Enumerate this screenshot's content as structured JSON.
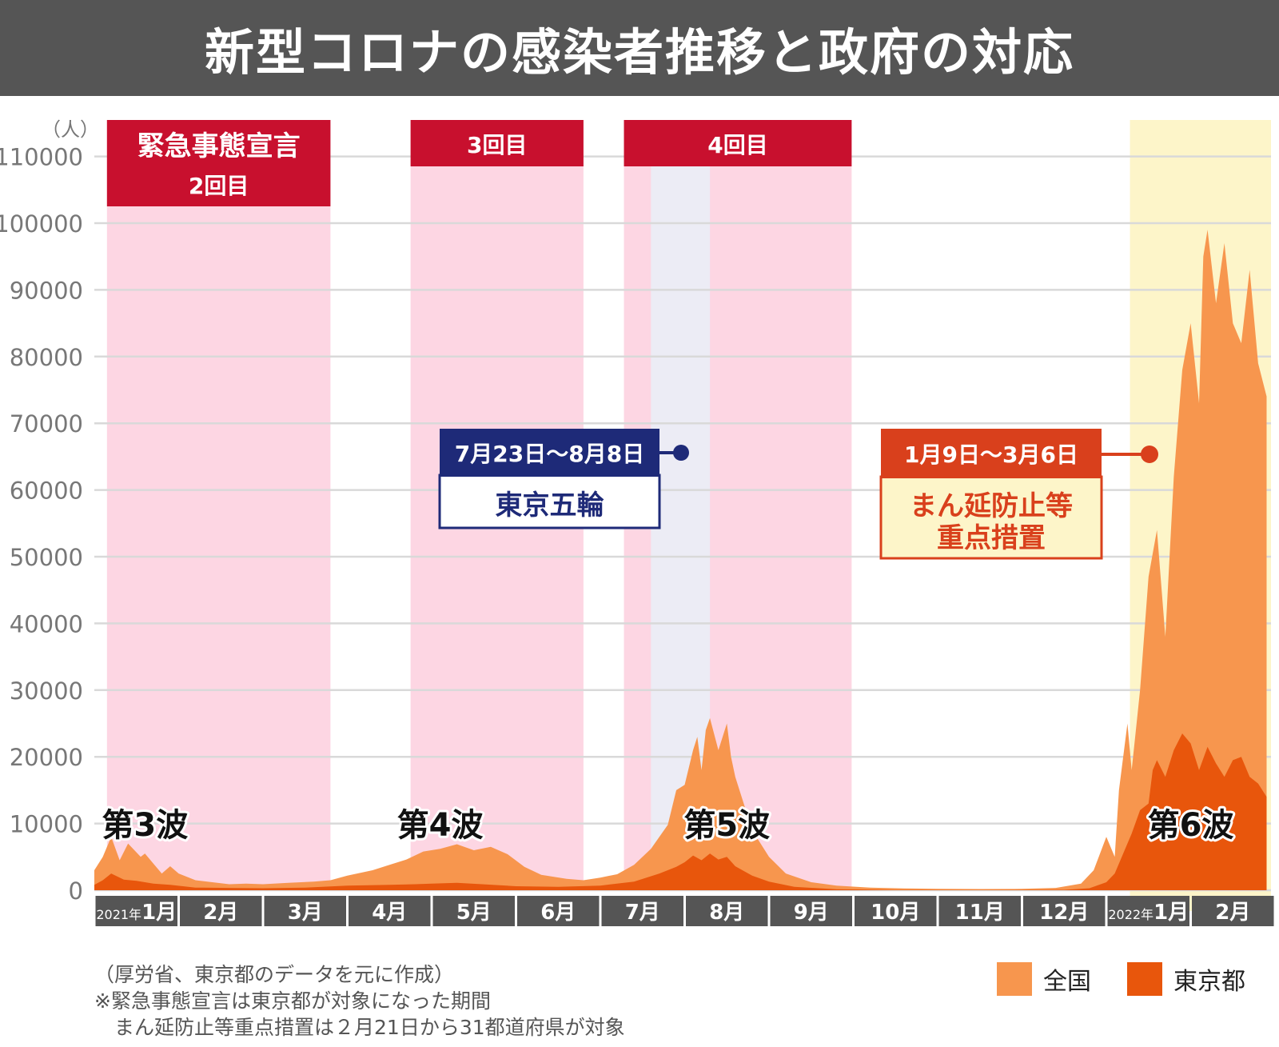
{
  "title": "新型コロナの感染者推移と政府の対応",
  "unit": "（人）",
  "chart_data": {
    "type": "area",
    "ylim": [
      0,
      110000
    ],
    "y_ticks": [
      0,
      10000,
      20000,
      30000,
      40000,
      50000,
      60000,
      70000,
      80000,
      90000,
      100000,
      110000
    ],
    "months": [
      {
        "label": "1月",
        "year": "2021年"
      },
      {
        "label": "2月"
      },
      {
        "label": "3月"
      },
      {
        "label": "4月"
      },
      {
        "label": "5月"
      },
      {
        "label": "6月"
      },
      {
        "label": "7月"
      },
      {
        "label": "8月"
      },
      {
        "label": "9月"
      },
      {
        "label": "10月"
      },
      {
        "label": "11月"
      },
      {
        "label": "12月"
      },
      {
        "label": "1月",
        "year": "2022年"
      },
      {
        "label": "2月"
      }
    ],
    "x_unit": "month",
    "series": [
      {
        "name": "全国",
        "color": "#f7964e",
        "points": [
          [
            0,
            3000
          ],
          [
            0.1,
            5000
          ],
          [
            0.2,
            8000
          ],
          [
            0.3,
            4500
          ],
          [
            0.4,
            7000
          ],
          [
            0.55,
            5000
          ],
          [
            0.6,
            5500
          ],
          [
            0.7,
            4000
          ],
          [
            0.8,
            2500
          ],
          [
            0.9,
            3600
          ],
          [
            1.0,
            2500
          ],
          [
            1.2,
            1500
          ],
          [
            1.4,
            1200
          ],
          [
            1.6,
            900
          ],
          [
            1.8,
            1000
          ],
          [
            2.0,
            900
          ],
          [
            2.3,
            1100
          ],
          [
            2.6,
            1300
          ],
          [
            2.8,
            1500
          ],
          [
            3.0,
            2200
          ],
          [
            3.3,
            3000
          ],
          [
            3.5,
            3800
          ],
          [
            3.7,
            4600
          ],
          [
            3.9,
            5800
          ],
          [
            4.1,
            6200
          ],
          [
            4.3,
            6900
          ],
          [
            4.5,
            6000
          ],
          [
            4.7,
            6500
          ],
          [
            4.9,
            5400
          ],
          [
            5.1,
            3500
          ],
          [
            5.3,
            2300
          ],
          [
            5.6,
            1700
          ],
          [
            5.8,
            1500
          ],
          [
            6.0,
            1900
          ],
          [
            6.2,
            2400
          ],
          [
            6.4,
            3800
          ],
          [
            6.6,
            6200
          ],
          [
            6.8,
            9800
          ],
          [
            6.9,
            15000
          ],
          [
            7.0,
            15800
          ],
          [
            7.1,
            21000
          ],
          [
            7.15,
            23000
          ],
          [
            7.2,
            18000
          ],
          [
            7.25,
            24000
          ],
          [
            7.3,
            25800
          ],
          [
            7.4,
            21000
          ],
          [
            7.5,
            25000
          ],
          [
            7.55,
            20000
          ],
          [
            7.6,
            17000
          ],
          [
            7.7,
            13000
          ],
          [
            7.8,
            9000
          ],
          [
            7.9,
            7000
          ],
          [
            8.0,
            5000
          ],
          [
            8.2,
            2500
          ],
          [
            8.5,
            1200
          ],
          [
            8.8,
            700
          ],
          [
            9.2,
            400
          ],
          [
            9.6,
            260
          ],
          [
            10.0,
            220
          ],
          [
            10.5,
            180
          ],
          [
            11.0,
            200
          ],
          [
            11.4,
            350
          ],
          [
            11.7,
            1000
          ],
          [
            11.85,
            3000
          ],
          [
            12.0,
            8000
          ],
          [
            12.1,
            5000
          ],
          [
            12.15,
            15000
          ],
          [
            12.25,
            25000
          ],
          [
            12.3,
            18000
          ],
          [
            12.4,
            30000
          ],
          [
            12.5,
            47000
          ],
          [
            12.6,
            54000
          ],
          [
            12.7,
            38000
          ],
          [
            12.8,
            62000
          ],
          [
            12.9,
            78000
          ],
          [
            13.0,
            85000
          ],
          [
            13.1,
            73000
          ],
          [
            13.15,
            95000
          ],
          [
            13.2,
            99000
          ],
          [
            13.3,
            88000
          ],
          [
            13.4,
            97000
          ],
          [
            13.5,
            85000
          ],
          [
            13.6,
            82000
          ],
          [
            13.7,
            93000
          ],
          [
            13.8,
            79000
          ],
          [
            13.9,
            74000
          ]
        ]
      },
      {
        "name": "東京都",
        "color": "#e8560c",
        "points": [
          [
            0,
            800
          ],
          [
            0.1,
            1500
          ],
          [
            0.2,
            2500
          ],
          [
            0.35,
            1600
          ],
          [
            0.5,
            1400
          ],
          [
            0.7,
            1000
          ],
          [
            0.9,
            800
          ],
          [
            1.2,
            400
          ],
          [
            1.6,
            350
          ],
          [
            2.0,
            300
          ],
          [
            2.5,
            400
          ],
          [
            3.0,
            700
          ],
          [
            3.5,
            800
          ],
          [
            3.8,
            900
          ],
          [
            4.0,
            1000
          ],
          [
            4.3,
            1100
          ],
          [
            4.6,
            900
          ],
          [
            5.0,
            600
          ],
          [
            5.5,
            500
          ],
          [
            6.0,
            700
          ],
          [
            6.4,
            1300
          ],
          [
            6.7,
            2500
          ],
          [
            6.9,
            3500
          ],
          [
            7.0,
            4200
          ],
          [
            7.1,
            5200
          ],
          [
            7.2,
            4500
          ],
          [
            7.3,
            5500
          ],
          [
            7.4,
            4600
          ],
          [
            7.5,
            5000
          ],
          [
            7.6,
            3600
          ],
          [
            7.8,
            2200
          ],
          [
            8.0,
            1300
          ],
          [
            8.3,
            500
          ],
          [
            8.8,
            150
          ],
          [
            9.5,
            50
          ],
          [
            10.5,
            40
          ],
          [
            11.5,
            60
          ],
          [
            11.8,
            300
          ],
          [
            12.0,
            1200
          ],
          [
            12.1,
            2500
          ],
          [
            12.2,
            5500
          ],
          [
            12.3,
            8500
          ],
          [
            12.4,
            12000
          ],
          [
            12.5,
            13000
          ],
          [
            12.55,
            18000
          ],
          [
            12.6,
            19500
          ],
          [
            12.7,
            17000
          ],
          [
            12.8,
            21000
          ],
          [
            12.9,
            23500
          ],
          [
            13.0,
            22000
          ],
          [
            13.1,
            18000
          ],
          [
            13.2,
            21500
          ],
          [
            13.3,
            19000
          ],
          [
            13.4,
            17000
          ],
          [
            13.5,
            19500
          ],
          [
            13.6,
            20000
          ],
          [
            13.7,
            17000
          ],
          [
            13.8,
            16000
          ],
          [
            13.9,
            14000
          ]
        ]
      }
    ],
    "emergency_periods": [
      {
        "start": 0.15,
        "end": 2.8,
        "label": "緊急事態宣言",
        "sublabel": "2回目"
      },
      {
        "start": 3.75,
        "end": 5.8,
        "label": "3回目"
      },
      {
        "start": 6.28,
        "end": 8.98,
        "label": "4回目"
      }
    ],
    "olympics": {
      "start": 6.6,
      "end": 7.3,
      "date_label": "7月23日〜8月8日",
      "label": "東京五輪"
    },
    "priority_measures": {
      "start": 12.28,
      "end": 14.0,
      "date_label": "1月9日〜3月6日",
      "label_line1": "まん延防止等",
      "label_line2": "重点措置"
    },
    "waves": [
      {
        "label": "第3波",
        "x": 0.6
      },
      {
        "label": "第4波",
        "x": 4.1
      },
      {
        "label": "第5波",
        "x": 7.5
      },
      {
        "label": "第6波",
        "x": 13.0
      }
    ]
  },
  "legend": [
    {
      "label": "全国",
      "color": "#f7964e"
    },
    {
      "label": "東京都",
      "color": "#e8560c"
    }
  ],
  "notes": [
    "（厚労省、東京都のデータを元に作成）",
    "※緊急事態宣言は東京都が対象になった期間",
    "　まん延防止等重点措置は２月21日から31都道府県が対象"
  ]
}
